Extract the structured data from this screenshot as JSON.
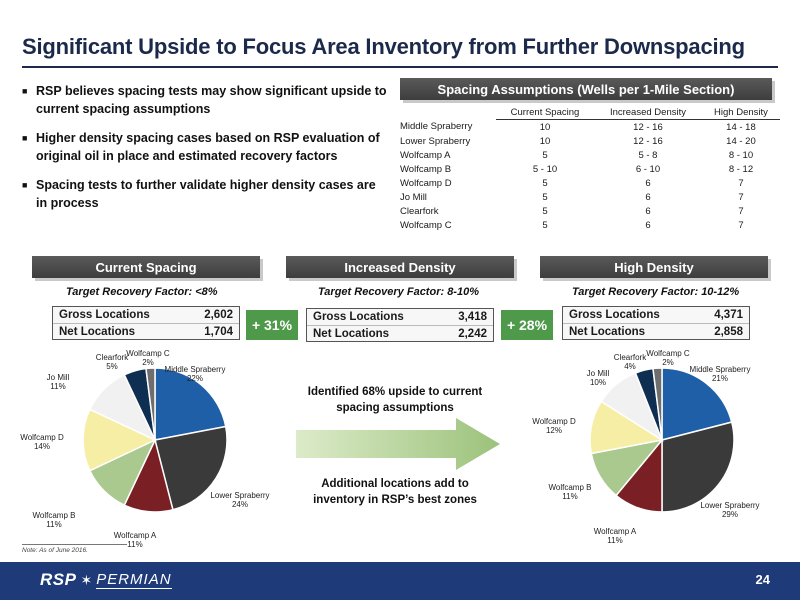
{
  "title": "Significant Upside to Focus Area Inventory from Further Downspacing",
  "bullets": [
    "RSP believes spacing tests may show significant upside to current spacing assumptions",
    "Higher density spacing cases based on RSP evaluation of original oil in place and estimated recovery factors",
    "Spacing tests to further validate higher density cases are in process"
  ],
  "spacing_table": {
    "heading": "Spacing Assumptions (Wells per 1-Mile Section)",
    "columns": [
      "Current Spacing",
      "Increased Density",
      "High Density"
    ],
    "rows": [
      [
        "Middle Spraberry",
        "10",
        "12 - 16",
        "14 - 18"
      ],
      [
        "Lower Spraberry",
        "10",
        "12 - 16",
        "14 - 20"
      ],
      [
        "Wolfcamp A",
        "5",
        "5 - 8",
        "8 - 10"
      ],
      [
        "Wolfcamp B",
        "5 - 10",
        "6 - 10",
        "8 - 12"
      ],
      [
        "Wolfcamp D",
        "5",
        "6",
        "7"
      ],
      [
        "Jo Mill",
        "5",
        "6",
        "7"
      ],
      [
        "Clearfork",
        "5",
        "6",
        "7"
      ],
      [
        "Wolfcamp C",
        "5",
        "6",
        "7"
      ]
    ]
  },
  "cases": [
    {
      "heading": "Current Spacing",
      "target": "Target Recovery Factor: <8%",
      "gross_label": "Gross Locations",
      "gross": "2,602",
      "net_label": "Net Locations",
      "net": "1,704"
    },
    {
      "heading": "Increased Density",
      "target": "Target Recovery Factor: 8-10%",
      "gross_label": "Gross Locations",
      "gross": "3,418",
      "net_label": "Net Locations",
      "net": "2,242"
    },
    {
      "heading": "High Density",
      "target": "Target Recovery Factor: 10-12%",
      "gross_label": "Gross Locations",
      "gross": "4,371",
      "net_label": "Net Locations",
      "net": "2,858"
    }
  ],
  "increases": [
    "+ 31%",
    "+ 28%"
  ],
  "middle": {
    "upside": "Identified 68% upside to current spacing assumptions",
    "additional": "Additional locations add to inventory in RSP’s best zones"
  },
  "chart_data": [
    {
      "type": "pie",
      "categories": [
        "Middle Spraberry",
        "Lower Spraberry",
        "Wolfcamp A",
        "Wolfcamp B",
        "Wolfcamp D",
        "Jo Mill",
        "Clearfork",
        "Wolfcamp C"
      ],
      "values": [
        22,
        24,
        11,
        11,
        14,
        11,
        5,
        2
      ],
      "labels": [
        "Middle Spraberry 22%",
        "Lower Spraberry 24%",
        "Wolfcamp A 11%",
        "Wolfcamp B 11%",
        "Wolfcamp D 14%",
        "Jo Mill 11%",
        "Clearfork 5%",
        "Wolfcamp C 2%"
      ],
      "colors": [
        "#1f5fa8",
        "#3a3a3a",
        "#7a1f24",
        "#a9c98f",
        "#f6eea4",
        "#f1f1f1",
        "#0f2f52",
        "#6e6e6e"
      ]
    },
    {
      "type": "pie",
      "categories": [
        "Middle Spraberry",
        "Lower Spraberry",
        "Wolfcamp A",
        "Wolfcamp B",
        "Wolfcamp D",
        "Jo Mill",
        "Clearfork",
        "Wolfcamp C"
      ],
      "values": [
        21,
        29,
        11,
        11,
        12,
        10,
        4,
        2
      ],
      "labels": [
        "Middle Spraberry 21%",
        "Lower Spraberry 29%",
        "Wolfcamp A 11%",
        "Wolfcamp B 11%",
        "Wolfcamp D 12%",
        "Jo Mill 10%",
        "Clearfork 4%",
        "Wolfcamp C 2%"
      ],
      "colors": [
        "#1f5fa8",
        "#3a3a3a",
        "#7a1f24",
        "#a9c98f",
        "#f6eea4",
        "#f1f1f1",
        "#0f2f52",
        "#6e6e6e"
      ]
    }
  ],
  "note": "Note: As of June 2016.",
  "footer": {
    "logo_rsp": "RSP",
    "logo_permian": "PERMIAN",
    "page": "24"
  }
}
